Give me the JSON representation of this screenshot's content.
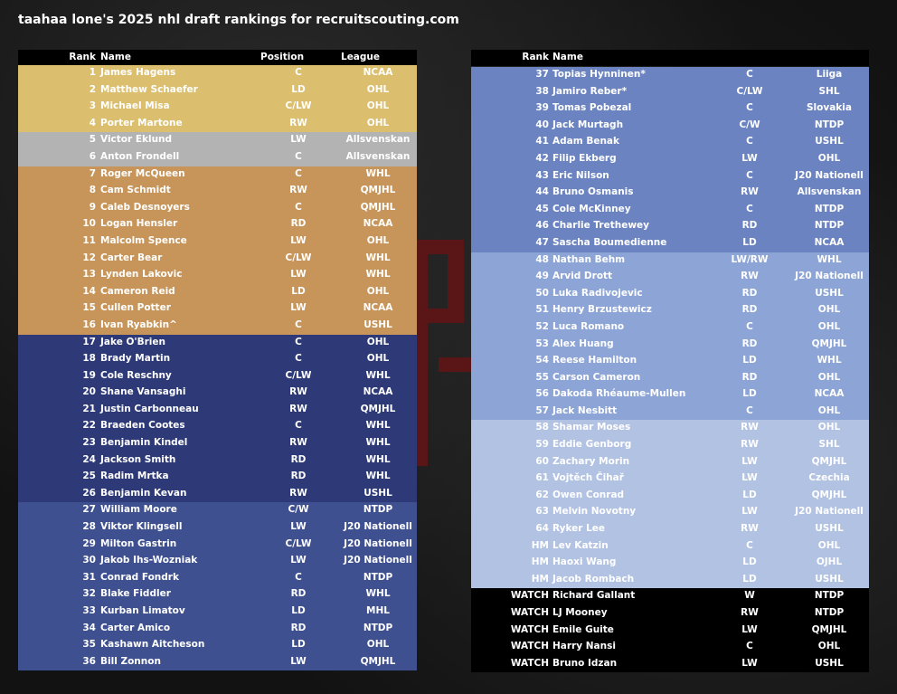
{
  "title": "taahaa lone's 2025 nhl draft rankings for recruitscouting.com",
  "colors": {
    "gold": "#dbbe6e",
    "silver": "#b3b3b3",
    "bronze": "#c7955a",
    "navy": "#2e3a78",
    "blue": "#3e5090",
    "steel": "#6b84c1",
    "light_blue": "#8da5d6",
    "pale_blue": "#b2c2e3",
    "black": "#000000"
  },
  "left_table": {
    "headers": {
      "rank": "Rank",
      "name": "Name",
      "position": "Position",
      "league": "League"
    },
    "rows": [
      {
        "rank": "1",
        "name": "James Hagens",
        "pos": "C",
        "league": "NCAA",
        "tier": "gold"
      },
      {
        "rank": "2",
        "name": "Matthew Schaefer",
        "pos": "LD",
        "league": "OHL",
        "tier": "gold"
      },
      {
        "rank": "3",
        "name": "Michael Misa",
        "pos": "C/LW",
        "league": "OHL",
        "tier": "gold"
      },
      {
        "rank": "4",
        "name": "Porter Martone",
        "pos": "RW",
        "league": "OHL",
        "tier": "gold"
      },
      {
        "rank": "5",
        "name": "Victor Eklund",
        "pos": "LW",
        "league": "Allsvenskan",
        "tier": "silver"
      },
      {
        "rank": "6",
        "name": "Anton Frondell",
        "pos": "C",
        "league": "Allsvenskan",
        "tier": "silver"
      },
      {
        "rank": "7",
        "name": "Roger McQueen",
        "pos": "C",
        "league": "WHL",
        "tier": "bronze"
      },
      {
        "rank": "8",
        "name": "Cam Schmidt",
        "pos": "RW",
        "league": "QMJHL",
        "tier": "bronze"
      },
      {
        "rank": "9",
        "name": "Caleb Desnoyers",
        "pos": "C",
        "league": "QMJHL",
        "tier": "bronze"
      },
      {
        "rank": "10",
        "name": "Logan Hensler",
        "pos": "RD",
        "league": "NCAA",
        "tier": "bronze"
      },
      {
        "rank": "11",
        "name": "Malcolm Spence",
        "pos": "LW",
        "league": "OHL",
        "tier": "bronze"
      },
      {
        "rank": "12",
        "name": "Carter Bear",
        "pos": "C/LW",
        "league": "WHL",
        "tier": "bronze"
      },
      {
        "rank": "13",
        "name": "Lynden Lakovic",
        "pos": "LW",
        "league": "WHL",
        "tier": "bronze"
      },
      {
        "rank": "14",
        "name": "Cameron Reid",
        "pos": "LD",
        "league": "OHL",
        "tier": "bronze"
      },
      {
        "rank": "15",
        "name": "Cullen Potter",
        "pos": "LW",
        "league": "NCAA",
        "tier": "bronze"
      },
      {
        "rank": "16",
        "name": "Ivan Ryabkin^",
        "pos": "C",
        "league": "USHL",
        "tier": "bronze"
      },
      {
        "rank": "17",
        "name": "Jake O'Brien",
        "pos": "C",
        "league": "OHL",
        "tier": "navy"
      },
      {
        "rank": "18",
        "name": "Brady Martin",
        "pos": "C",
        "league": "OHL",
        "tier": "navy"
      },
      {
        "rank": "19",
        "name": "Cole Reschny",
        "pos": "C/LW",
        "league": "WHL",
        "tier": "navy"
      },
      {
        "rank": "20",
        "name": "Shane Vansaghi",
        "pos": "RW",
        "league": "NCAA",
        "tier": "navy"
      },
      {
        "rank": "21",
        "name": "Justin Carbonneau",
        "pos": "RW",
        "league": "QMJHL",
        "tier": "navy"
      },
      {
        "rank": "22",
        "name": "Braeden Cootes",
        "pos": "C",
        "league": "WHL",
        "tier": "navy"
      },
      {
        "rank": "23",
        "name": "Benjamin Kindel",
        "pos": "RW",
        "league": "WHL",
        "tier": "navy"
      },
      {
        "rank": "24",
        "name": "Jackson Smith",
        "pos": "RD",
        "league": "WHL",
        "tier": "navy"
      },
      {
        "rank": "25",
        "name": "Radim Mrtka",
        "pos": "RD",
        "league": "WHL",
        "tier": "navy"
      },
      {
        "rank": "26",
        "name": "Benjamin Kevan",
        "pos": "RW",
        "league": "USHL",
        "tier": "navy"
      },
      {
        "rank": "27",
        "name": "William Moore",
        "pos": "C/W",
        "league": "NTDP",
        "tier": "blue"
      },
      {
        "rank": "28",
        "name": "Viktor Klingsell",
        "pos": "LW",
        "league": "J20 Nationell",
        "tier": "blue"
      },
      {
        "rank": "29",
        "name": "Milton Gastrin",
        "pos": "C/LW",
        "league": "J20 Nationell",
        "tier": "blue"
      },
      {
        "rank": "30",
        "name": "Jakob Ihs-Wozniak",
        "pos": "LW",
        "league": "J20 Nationell",
        "tier": "blue"
      },
      {
        "rank": "31",
        "name": "Conrad Fondrk",
        "pos": "C",
        "league": "NTDP",
        "tier": "blue"
      },
      {
        "rank": "32",
        "name": "Blake Fiddler",
        "pos": "RD",
        "league": "WHL",
        "tier": "blue"
      },
      {
        "rank": "33",
        "name": "Kurban Limatov",
        "pos": "LD",
        "league": "MHL",
        "tier": "blue"
      },
      {
        "rank": "34",
        "name": "Carter Amico",
        "pos": "RD",
        "league": "NTDP",
        "tier": "blue"
      },
      {
        "rank": "35",
        "name": "Kashawn Aitcheson",
        "pos": "LD",
        "league": "OHL",
        "tier": "blue"
      },
      {
        "rank": "36",
        "name": "Bill Zonnon",
        "pos": "LW",
        "league": "QMJHL",
        "tier": "blue"
      }
    ]
  },
  "right_table": {
    "headers": {
      "rank": "Rank",
      "name": "Name",
      "position": "",
      "league": ""
    },
    "rows": [
      {
        "rank": "37",
        "name": "Topias Hynninen*",
        "pos": "C",
        "league": "Liiga",
        "tier": "steel"
      },
      {
        "rank": "38",
        "name": "Jamiro Reber*",
        "pos": "C/LW",
        "league": "SHL",
        "tier": "steel"
      },
      {
        "rank": "39",
        "name": "Tomas Pobezal",
        "pos": "C",
        "league": "Slovakia",
        "tier": "steel"
      },
      {
        "rank": "40",
        "name": "Jack Murtagh",
        "pos": "C/W",
        "league": "NTDP",
        "tier": "steel"
      },
      {
        "rank": "41",
        "name": "Adam Benak",
        "pos": "C",
        "league": "USHL",
        "tier": "steel"
      },
      {
        "rank": "42",
        "name": "Filip Ekberg",
        "pos": "LW",
        "league": "OHL",
        "tier": "steel"
      },
      {
        "rank": "43",
        "name": "Eric Nilson",
        "pos": "C",
        "league": "J20 Nationell",
        "tier": "steel"
      },
      {
        "rank": "44",
        "name": "Bruno Osmanis",
        "pos": "RW",
        "league": "Allsvenskan",
        "tier": "steel"
      },
      {
        "rank": "45",
        "name": "Cole McKinney",
        "pos": "C",
        "league": "NTDP",
        "tier": "steel"
      },
      {
        "rank": "46",
        "name": "Charlie Trethewey",
        "pos": "RD",
        "league": "NTDP",
        "tier": "steel"
      },
      {
        "rank": "47",
        "name": "Sascha Boumedienne",
        "pos": "LD",
        "league": "NCAA",
        "tier": "steel"
      },
      {
        "rank": "48",
        "name": "Nathan Behm",
        "pos": "LW/RW",
        "league": "WHL",
        "tier": "light_blue"
      },
      {
        "rank": "49",
        "name": "Arvid Drott",
        "pos": "RW",
        "league": "J20 Nationell",
        "tier": "light_blue"
      },
      {
        "rank": "50",
        "name": "Luka Radivojevic",
        "pos": "RD",
        "league": "USHL",
        "tier": "light_blue"
      },
      {
        "rank": "51",
        "name": "Henry Brzustewicz",
        "pos": "RD",
        "league": "OHL",
        "tier": "light_blue"
      },
      {
        "rank": "52",
        "name": "Luca Romano",
        "pos": "C",
        "league": "OHL",
        "tier": "light_blue"
      },
      {
        "rank": "53",
        "name": "Alex Huang",
        "pos": "RD",
        "league": "QMJHL",
        "tier": "light_blue"
      },
      {
        "rank": "54",
        "name": "Reese Hamilton",
        "pos": "LD",
        "league": "WHL",
        "tier": "light_blue"
      },
      {
        "rank": "55",
        "name": "Carson Cameron",
        "pos": "RD",
        "league": "OHL",
        "tier": "light_blue"
      },
      {
        "rank": "56",
        "name": "Dakoda Rhéaume-Mullen",
        "pos": "LD",
        "league": "NCAA",
        "tier": "light_blue"
      },
      {
        "rank": "57",
        "name": "Jack Nesbitt",
        "pos": "C",
        "league": "OHL",
        "tier": "light_blue"
      },
      {
        "rank": "58",
        "name": "Shamar Moses",
        "pos": "RW",
        "league": "OHL",
        "tier": "pale_blue"
      },
      {
        "rank": "59",
        "name": "Eddie Genborg",
        "pos": "RW",
        "league": "SHL",
        "tier": "pale_blue"
      },
      {
        "rank": "60",
        "name": "Zachary Morin",
        "pos": "LW",
        "league": "QMJHL",
        "tier": "pale_blue"
      },
      {
        "rank": "61",
        "name": "Vojtěch Čihař",
        "pos": "LW",
        "league": "Czechia",
        "tier": "pale_blue"
      },
      {
        "rank": "62",
        "name": "Owen Conrad",
        "pos": "LD",
        "league": "QMJHL",
        "tier": "pale_blue"
      },
      {
        "rank": "63",
        "name": "Melvin Novotny",
        "pos": "LW",
        "league": "J20 Nationell",
        "tier": "pale_blue"
      },
      {
        "rank": "64",
        "name": "Ryker Lee",
        "pos": "RW",
        "league": "USHL",
        "tier": "pale_blue"
      },
      {
        "rank": "HM",
        "name": "Lev Katzin",
        "pos": "C",
        "league": "OHL",
        "tier": "pale_blue"
      },
      {
        "rank": "HM",
        "name": "Haoxi Wang",
        "pos": "LD",
        "league": "OJHL",
        "tier": "pale_blue"
      },
      {
        "rank": "HM",
        "name": "Jacob Rombach",
        "pos": "LD",
        "league": "USHL",
        "tier": "pale_blue"
      },
      {
        "rank": "WATCH",
        "name": "Richard Gallant",
        "pos": "W",
        "league": "NTDP",
        "tier": "black"
      },
      {
        "rank": "WATCH",
        "name": "LJ Mooney",
        "pos": "RW",
        "league": "NTDP",
        "tier": "black"
      },
      {
        "rank": "WATCH",
        "name": "Emile Guite",
        "pos": "LW",
        "league": "QMJHL",
        "tier": "black"
      },
      {
        "rank": "WATCH",
        "name": "Harry Nansi",
        "pos": "C",
        "league": "OHL",
        "tier": "black"
      },
      {
        "rank": "WATCH",
        "name": "Bruno Idzan",
        "pos": "LW",
        "league": "USHL",
        "tier": "black"
      }
    ]
  }
}
